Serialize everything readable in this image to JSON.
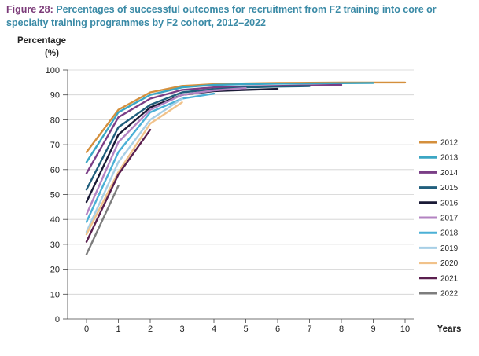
{
  "figure": {
    "label": "Figure 28:",
    "title": "Percentages of successful outcomes for recruitment from F2 training into core or specialty training programmes by F2 cohort, 2012–2022"
  },
  "chart_data": {
    "type": "line",
    "ylabel_line1": "Percentage",
    "ylabel_line2": "(%)",
    "xlabel": "Years",
    "x_ticks": [
      0,
      1,
      2,
      3,
      4,
      5,
      6,
      7,
      8,
      9,
      10
    ],
    "y_ticks": [
      0,
      10,
      20,
      30,
      40,
      50,
      60,
      70,
      80,
      90,
      100
    ],
    "xlim": [
      0,
      10
    ],
    "ylim": [
      0,
      100
    ],
    "grid": true,
    "legend_position": "right",
    "series": [
      {
        "name": "2012",
        "color": "#d48f3c",
        "x": [
          0,
          1,
          2,
          3,
          4,
          5,
          6,
          7,
          8,
          9,
          10
        ],
        "y": [
          67,
          84,
          91,
          93.6,
          94.3,
          94.6,
          94.8,
          94.9,
          95,
          95,
          95
        ]
      },
      {
        "name": "2013",
        "color": "#3ba6c4",
        "x": [
          0,
          1,
          2,
          3,
          4,
          5,
          6,
          7,
          8,
          9
        ],
        "y": [
          63,
          83,
          90,
          93,
          94,
          94.3,
          94.5,
          94.6,
          94.7,
          94.8
        ]
      },
      {
        "name": "2014",
        "color": "#7a3e86",
        "x": [
          0,
          1,
          2,
          3,
          4,
          5,
          6,
          7,
          8
        ],
        "y": [
          58.5,
          81,
          88.5,
          92,
          93,
          93.4,
          93.6,
          93.8,
          94
        ]
      },
      {
        "name": "2015",
        "color": "#215f7d",
        "x": [
          0,
          1,
          2,
          3,
          4,
          5,
          6,
          7
        ],
        "y": [
          52,
          77,
          86,
          91,
          92.3,
          93,
          93.3,
          93.5
        ]
      },
      {
        "name": "2016",
        "color": "#1a1a36",
        "x": [
          0,
          1,
          2,
          3,
          4,
          5,
          6
        ],
        "y": [
          47,
          74,
          85,
          90,
          91.5,
          92,
          92.4
        ]
      },
      {
        "name": "2017",
        "color": "#b383c2",
        "x": [
          0,
          1,
          2,
          3,
          4,
          5
        ],
        "y": [
          42,
          71,
          84,
          90,
          91.8,
          92.7
        ]
      },
      {
        "name": "2018",
        "color": "#4bb0d6",
        "x": [
          0,
          1,
          2,
          3,
          4
        ],
        "y": [
          39,
          67,
          83,
          88.5,
          90.5
        ]
      },
      {
        "name": "2019",
        "color": "#a7cfe6",
        "x": [
          0,
          1,
          2,
          3
        ],
        "y": [
          35,
          63,
          80,
          88.5
        ]
      },
      {
        "name": "2020",
        "color": "#f1c28a",
        "x": [
          0,
          1,
          2,
          3
        ],
        "y": [
          34,
          59,
          78.5,
          87
        ]
      },
      {
        "name": "2021",
        "color": "#5a1f4f",
        "x": [
          0,
          1,
          2
        ],
        "y": [
          31,
          58,
          76
        ]
      },
      {
        "name": "2022",
        "color": "#7d7d7d",
        "x": [
          0,
          1
        ],
        "y": [
          26,
          53.5
        ]
      }
    ]
  }
}
